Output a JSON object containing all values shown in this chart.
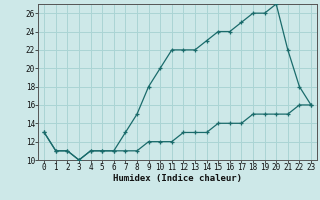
{
  "xlabel": "Humidex (Indice chaleur)",
  "ylabel": "",
  "background_color": "#cde8e8",
  "line_color": "#1a6b6b",
  "grid_color": "#aad4d4",
  "x_upper_line": [
    0,
    1,
    2,
    3,
    4,
    5,
    6,
    7,
    8,
    9,
    10,
    11,
    12,
    13,
    14,
    15,
    16,
    17,
    18,
    19,
    20,
    21,
    22,
    23
  ],
  "y_upper_line": [
    13,
    11,
    11,
    10,
    11,
    11,
    11,
    13,
    15,
    18,
    20,
    22,
    22,
    22,
    23,
    24,
    24,
    25,
    26,
    26,
    27,
    22,
    18,
    16
  ],
  "x_lower_line": [
    0,
    1,
    2,
    3,
    4,
    5,
    6,
    7,
    8,
    9,
    10,
    11,
    12,
    13,
    14,
    15,
    16,
    17,
    18,
    19,
    20,
    21,
    22,
    23
  ],
  "y_lower_line": [
    13,
    11,
    11,
    10,
    11,
    11,
    11,
    11,
    11,
    12,
    12,
    12,
    13,
    13,
    13,
    14,
    14,
    14,
    15,
    15,
    15,
    15,
    16,
    16
  ],
  "xlim": [
    -0.5,
    23.5
  ],
  "ylim": [
    10,
    27
  ],
  "yticks": [
    10,
    12,
    14,
    16,
    18,
    20,
    22,
    24,
    26
  ],
  "xticks": [
    0,
    1,
    2,
    3,
    4,
    5,
    6,
    7,
    8,
    9,
    10,
    11,
    12,
    13,
    14,
    15,
    16,
    17,
    18,
    19,
    20,
    21,
    22,
    23
  ],
  "tick_fontsize": 5.5,
  "xlabel_fontsize": 6.5
}
